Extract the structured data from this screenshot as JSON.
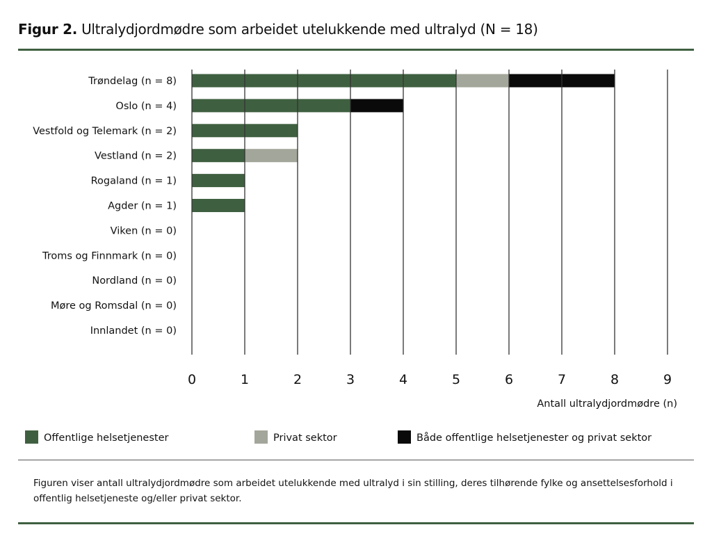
{
  "figure": {
    "label": "Figur 2.",
    "title": "Ultralydjordmødre som arbeidet utelukkende med ultralyd (N = 18)",
    "caption": "Figuren viser antall ultralydjordmødre som arbeidet utelukkende med ultralyd i sin stilling, deres tilhørende fylke og ansettelsesforhold i offentlig helsetjeneste og/eller privat sektor."
  },
  "chart_data": {
    "type": "bar",
    "orientation": "horizontal",
    "stacked": true,
    "categories": [
      "Trøndelag (n = 8)",
      "Oslo (n = 4)",
      "Vestfold og Telemark (n = 2)",
      "Vestland (n = 2)",
      "Rogaland (n = 1)",
      "Agder (n = 1)",
      "Viken (n = 0)",
      "Troms og Finnmark (n = 0)",
      "Nordland (n = 0)",
      "Møre og Romsdal (n = 0)",
      "Innlandet (n = 0)"
    ],
    "series": [
      {
        "name": "Offentlige helsetjenester",
        "color": "#3f6040",
        "values": [
          5,
          3,
          2,
          1,
          1,
          1,
          0,
          0,
          0,
          0,
          0
        ]
      },
      {
        "name": "Privat sektor",
        "color": "#a3a69a",
        "values": [
          1,
          0,
          0,
          1,
          0,
          0,
          0,
          0,
          0,
          0,
          0
        ]
      },
      {
        "name": "Både offentlige helsetjenester og privat sektor",
        "color": "#0a0a0a",
        "values": [
          2,
          1,
          0,
          0,
          0,
          0,
          0,
          0,
          0,
          0,
          0
        ]
      }
    ],
    "xlabel": "Antall ultralydjordmødre (n)",
    "xlim": [
      0,
      9
    ],
    "xticks": [
      "0",
      "1",
      "2",
      "3",
      "4",
      "5",
      "6",
      "7",
      "8",
      "9"
    ],
    "grid": "vertical",
    "legend": "bottom"
  }
}
